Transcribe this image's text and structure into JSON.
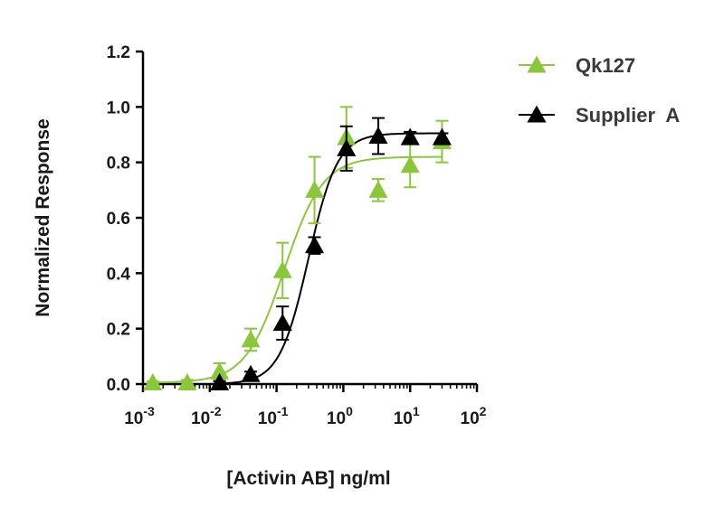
{
  "chart_data": {
    "type": "scatter",
    "x_scale": "log",
    "xlabel": "[Activin  AB] ng/ml",
    "ylabel": "Normalized Response",
    "xlim": [
      0.001,
      100
    ],
    "ylim": [
      0,
      1.2
    ],
    "x_ticks": [
      {
        "value": 0.001,
        "base": "10",
        "exp": "-3"
      },
      {
        "value": 0.01,
        "base": "10",
        "exp": "-2"
      },
      {
        "value": 0.1,
        "base": "10",
        "exp": "-1"
      },
      {
        "value": 1,
        "base": "10",
        "exp": "0"
      },
      {
        "value": 10,
        "base": "10",
        "exp": "1"
      },
      {
        "value": 100,
        "base": "10",
        "exp": "2"
      }
    ],
    "y_ticks": [
      {
        "value": 0.0,
        "label": "0.0"
      },
      {
        "value": 0.2,
        "label": "0.2"
      },
      {
        "value": 0.4,
        "label": "0.4"
      },
      {
        "value": 0.6,
        "label": "0.6"
      },
      {
        "value": 0.8,
        "label": "0.8"
      },
      {
        "value": 1.0,
        "label": "1.0"
      },
      {
        "value": 1.2,
        "label": "1.2"
      }
    ],
    "grid": false,
    "legend_position": "top-right",
    "series": [
      {
        "name": "Qk127",
        "color": "#8cc63f",
        "marker": "triangle-up",
        "points": [
          {
            "x": 0.0014,
            "y": 0.005,
            "err": 0.005
          },
          {
            "x": 0.0046,
            "y": 0.005,
            "err": 0.01
          },
          {
            "x": 0.014,
            "y": 0.045,
            "err": 0.03
          },
          {
            "x": 0.041,
            "y": 0.16,
            "err": 0.04
          },
          {
            "x": 0.123,
            "y": 0.41,
            "err": 0.1
          },
          {
            "x": 0.37,
            "y": 0.7,
            "err": 0.12
          },
          {
            "x": 1.11,
            "y": 0.89,
            "err": 0.11
          },
          {
            "x": 3.33,
            "y": 0.7,
            "err": 0.04
          },
          {
            "x": 10,
            "y": 0.79,
            "err": 0.08
          },
          {
            "x": 30,
            "y": 0.875,
            "err": 0.075
          }
        ],
        "fit": {
          "bottom": 0.005,
          "top": 0.82,
          "ec50": 0.13,
          "hill": 1.5
        }
      },
      {
        "name": "Supplier  A",
        "color": "#000000",
        "marker": "triangle-up",
        "points": [
          {
            "x": 0.014,
            "y": 0.005,
            "err": 0.005
          },
          {
            "x": 0.041,
            "y": 0.035,
            "err": 0.01
          },
          {
            "x": 0.123,
            "y": 0.22,
            "err": 0.06
          },
          {
            "x": 0.37,
            "y": 0.5,
            "err": 0.03
          },
          {
            "x": 1.11,
            "y": 0.85,
            "err": 0.08
          },
          {
            "x": 3.33,
            "y": 0.895,
            "err": 0.065
          },
          {
            "x": 10,
            "y": 0.89,
            "err": 0.02
          },
          {
            "x": 30,
            "y": 0.89,
            "err": 0.015
          }
        ],
        "fit": {
          "bottom": 0.0,
          "top": 0.905,
          "ec50": 0.3,
          "hill": 2.0
        }
      }
    ]
  }
}
